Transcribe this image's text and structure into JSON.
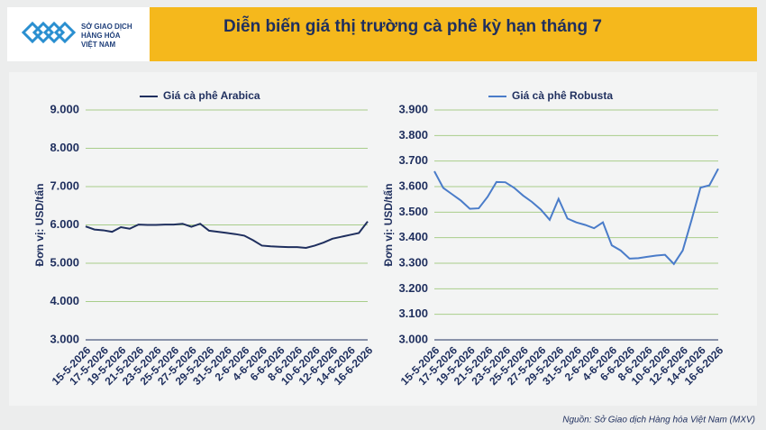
{
  "header": {
    "logo_lines": [
      "SỞ GIAO DỊCH",
      "HÀNG HÓA",
      "VIỆT NAM"
    ],
    "title": "Diễn biến giá thị trường cà phê kỳ hạn tháng 7"
  },
  "source": "Nguồn: Sở Giao dịch Hàng hóa Việt Nam (MXV)",
  "chart_data": [
    {
      "type": "line",
      "y_label": "Đơn vị: USD/tấn",
      "categories": [
        "15-5-2026",
        null,
        "17-5-2026",
        null,
        "19-5-2026",
        null,
        "21-5-2026",
        null,
        "23-5-2026",
        null,
        "25-5-2026",
        null,
        "27-5-2026",
        null,
        "29-5-2026",
        null,
        "31-5-2026",
        null,
        "2-6-2026",
        null,
        "4-6-2026",
        null,
        "6-6-2026",
        null,
        "8-6-2026",
        null,
        "10-6-2026",
        null,
        "12-6-2026",
        null,
        "14-6-2026",
        null,
        "16-6-2026"
      ],
      "series": [
        {
          "name": "Giá cà phê Arabica",
          "color": "#1f2f5e",
          "values": [
            5960,
            5880,
            5860,
            5820,
            5940,
            5900,
            6010,
            6000,
            6000,
            6010,
            6010,
            6030,
            5950,
            6030,
            5850,
            5820,
            5790,
            5760,
            5720,
            5600,
            5460,
            5440,
            5430,
            5420,
            5420,
            5400,
            5460,
            5540,
            5640,
            5690,
            5740,
            5790,
            6090
          ]
        }
      ],
      "ylim": [
        3000,
        9000
      ],
      "yticks": [
        {
          "value": 3000,
          "label": "3.000"
        },
        {
          "value": 4000,
          "label": "4.000"
        },
        {
          "value": 5000,
          "label": "5.000"
        },
        {
          "value": 6000,
          "label": "6.000"
        },
        {
          "value": 7000,
          "label": "7.000"
        },
        {
          "value": 8000,
          "label": "8.000"
        },
        {
          "value": 9000,
          "label": "9.000"
        }
      ],
      "grid": true
    },
    {
      "type": "line",
      "y_label": "Đơn vị: USD/tấn",
      "categories": [
        "15-5-2026",
        null,
        "17-5-2026",
        null,
        "19-5-2026",
        null,
        "21-5-2026",
        null,
        "23-5-2026",
        null,
        "25-5-2026",
        null,
        "27-5-2026",
        null,
        "29-5-2026",
        null,
        "31-5-2026",
        null,
        "2-6-2026",
        null,
        "4-6-2026",
        null,
        "6-6-2026",
        null,
        "8-6-2026",
        null,
        "10-6-2026",
        null,
        "12-6-2026",
        null,
        "14-6-2026",
        null,
        "16-6-2026"
      ],
      "series": [
        {
          "name": "Giá cà phê Robusta",
          "color": "#4a7cc9",
          "values": [
            3660,
            3595,
            3570,
            3545,
            3513,
            3515,
            3560,
            3618,
            3617,
            3595,
            3565,
            3540,
            3510,
            3470,
            3552,
            3475,
            3460,
            3450,
            3437,
            3460,
            3370,
            3350,
            3318,
            3320,
            3325,
            3330,
            3333,
            3297,
            3350,
            3470,
            3596,
            3605,
            3670
          ]
        }
      ],
      "ylim": [
        3000,
        3900
      ],
      "yticks": [
        {
          "value": 3000,
          "label": "3.000"
        },
        {
          "value": 3100,
          "label": "3.100"
        },
        {
          "value": 3200,
          "label": "3.200"
        },
        {
          "value": 3300,
          "label": "3.300"
        },
        {
          "value": 3400,
          "label": "3.400"
        },
        {
          "value": 3500,
          "label": "3.500"
        },
        {
          "value": 3600,
          "label": "3.600"
        },
        {
          "value": 3700,
          "label": "3.700"
        },
        {
          "value": 3800,
          "label": "3.800"
        },
        {
          "value": 3900,
          "label": "3.900"
        }
      ],
      "grid": true
    }
  ]
}
